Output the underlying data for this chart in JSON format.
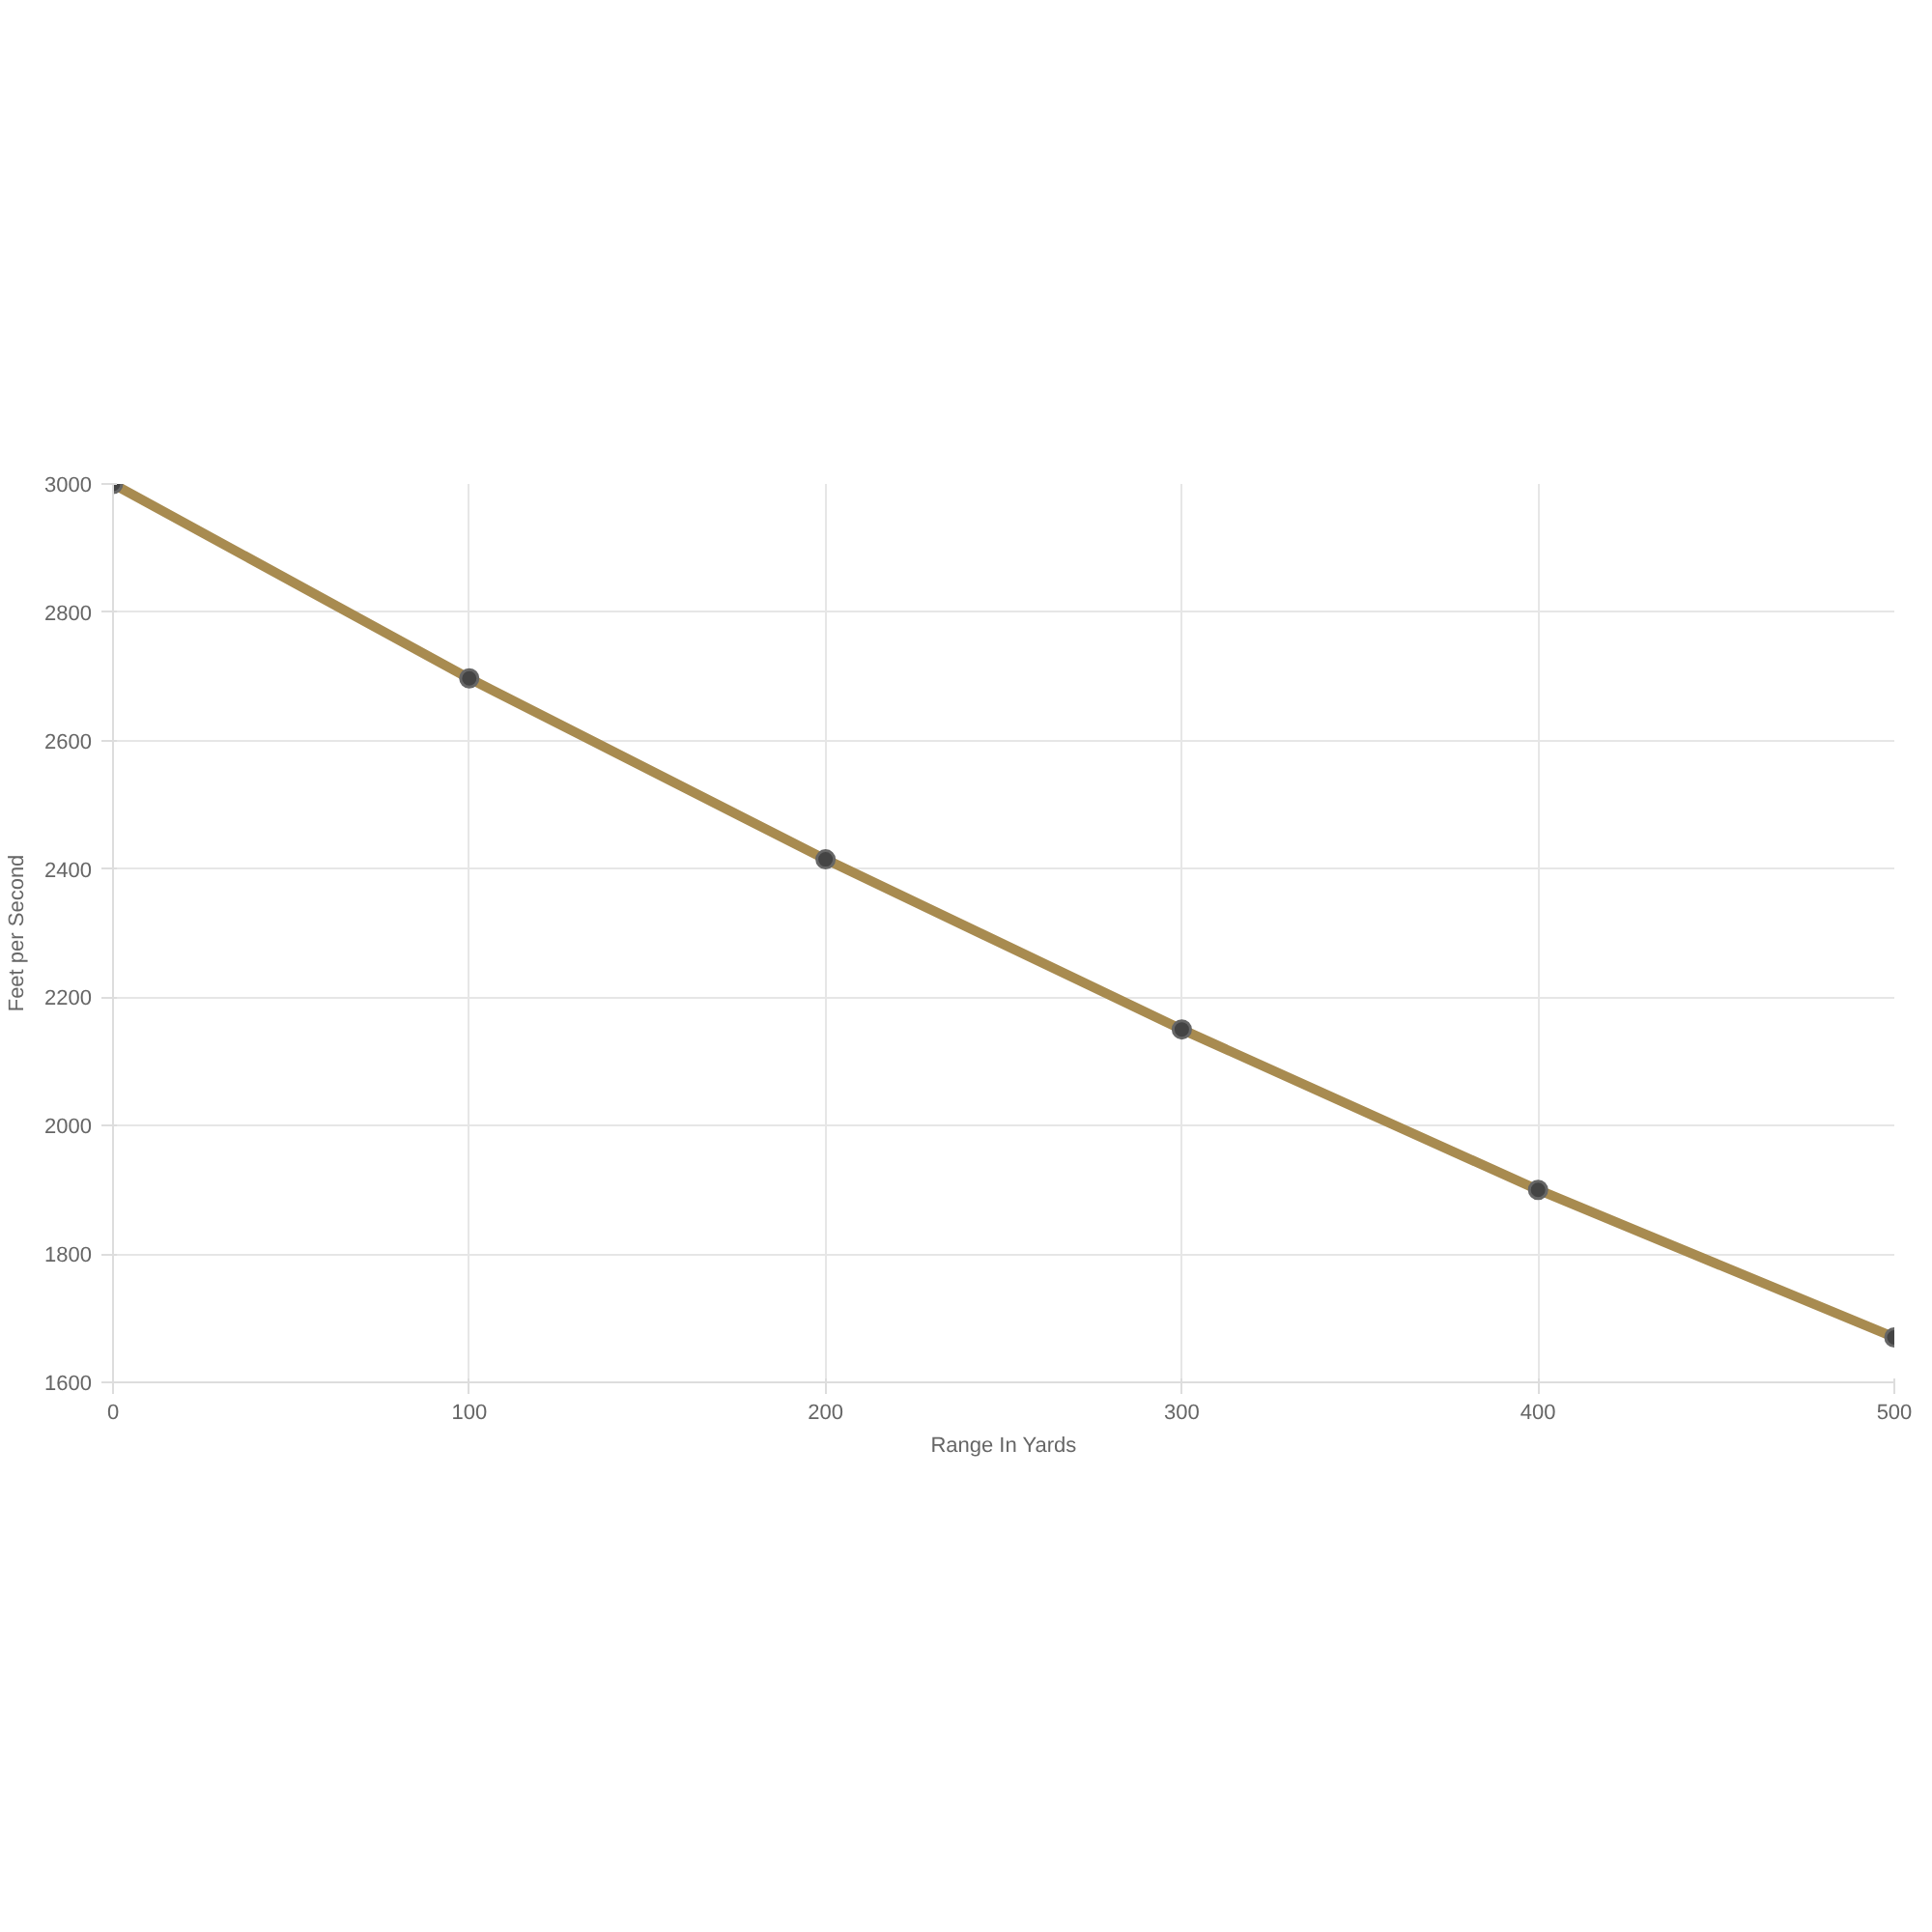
{
  "chart_data": {
    "type": "line",
    "xlabel": "Range In Yards",
    "ylabel": "Feet per Second",
    "x": [
      0,
      100,
      200,
      300,
      400,
      500
    ],
    "series": [
      {
        "color": "#a88b50",
        "values": [
          3000,
          2697,
          2415,
          2150,
          1900,
          1670
        ]
      }
    ],
    "xlim": [
      0,
      500
    ],
    "xticks": [
      0,
      100,
      200,
      300,
      400,
      500
    ],
    "ylim": [
      1600,
      3000
    ],
    "yticks": [
      1600,
      1800,
      2000,
      2200,
      2400,
      2600,
      2800,
      3000
    ],
    "grid": true,
    "marker": "circle",
    "line_style": "solid"
  }
}
